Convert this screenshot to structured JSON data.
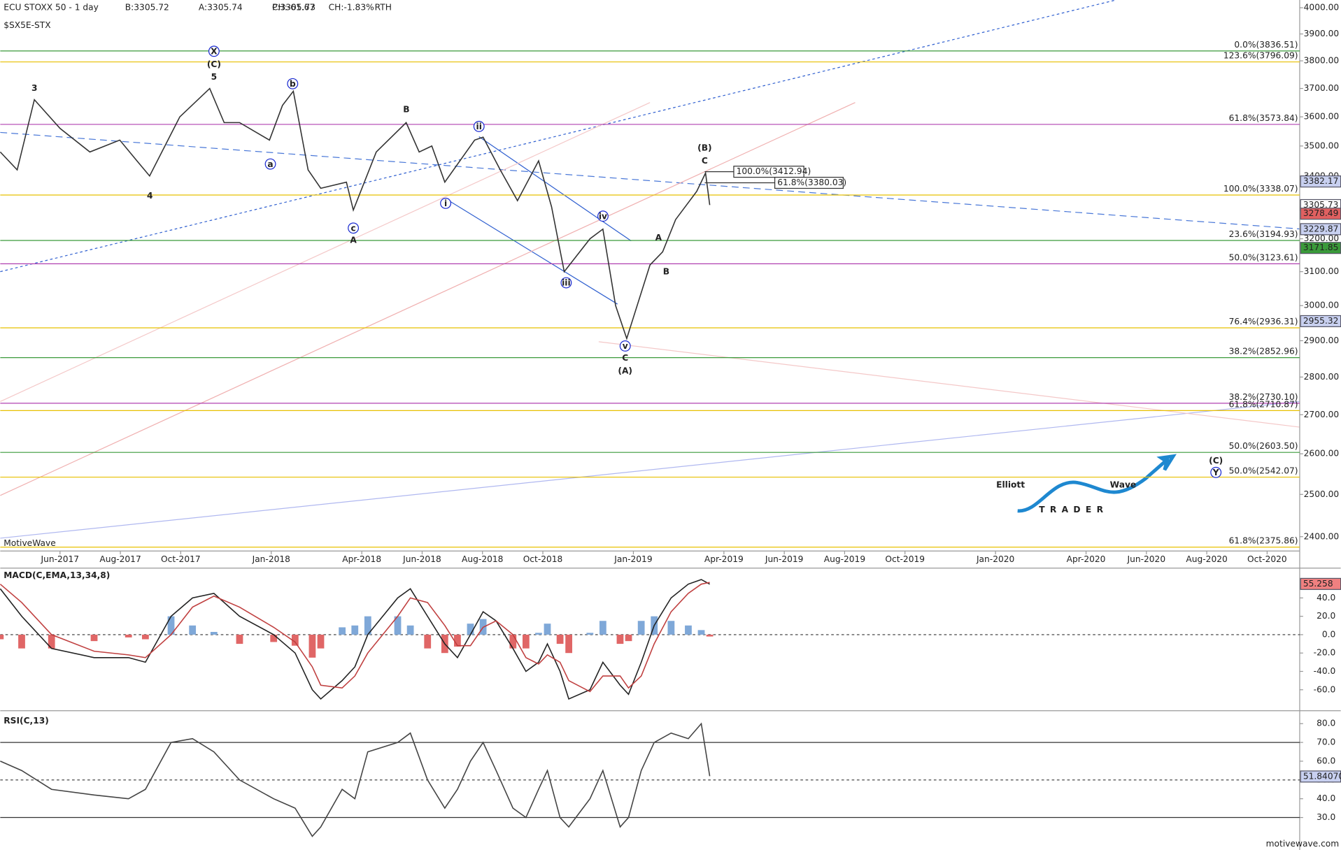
{
  "chart_data": [
    {
      "type": "line",
      "title": "ECU STOXX 50 - 1 day",
      "subtitle": "$SX5E-STX",
      "quote": [
        "B:3305.72",
        "A:3305.74",
        "P:3305.73"
      ],
      "change": [
        "CH:-61.67",
        "CH:-1.83%"
      ],
      "session": "RTH",
      "source": "MotiveWave",
      "footer": "motivewave.com",
      "logo": [
        "Elliott",
        "Wave",
        "TRADER"
      ],
      "log_scale": true,
      "xlim": [
        3.02,
        46.08
      ],
      "xticks": [
        {
          "value": 5,
          "label": "Jun-2017"
        },
        {
          "value": 7,
          "label": "Aug-2017"
        },
        {
          "value": 9,
          "label": "Oct-2017"
        },
        {
          "value": 12,
          "label": "Jan-2018"
        },
        {
          "value": 15,
          "label": "Apr-2018"
        },
        {
          "value": 17,
          "label": "Jun-2018"
        },
        {
          "value": 19,
          "label": "Aug-2018"
        },
        {
          "value": 21,
          "label": "Oct-2018"
        },
        {
          "value": 24,
          "label": "Jan-2019"
        },
        {
          "value": 27,
          "label": "Apr-2019"
        },
        {
          "value": 29,
          "label": "Jun-2019"
        },
        {
          "value": 31,
          "label": "Aug-2019"
        },
        {
          "value": 33,
          "label": "Oct-2019"
        },
        {
          "value": 36,
          "label": "Jan-2020"
        },
        {
          "value": 39,
          "label": "Apr-2020"
        },
        {
          "value": 41,
          "label": "Jun-2020"
        },
        {
          "value": 43,
          "label": "Aug-2020"
        },
        {
          "value": 45,
          "label": "Oct-2020"
        }
      ],
      "ylim": [
        2367,
        4030
      ],
      "yticks": [
        {
          "value": 2400,
          "label": "2400.00"
        },
        {
          "value": 2500,
          "label": "2500.00"
        },
        {
          "value": 2600,
          "label": "2600.00"
        },
        {
          "value": 2700,
          "label": "2700.00"
        },
        {
          "value": 2800,
          "label": "2800.00"
        },
        {
          "value": 2900,
          "label": "2900.00"
        },
        {
          "value": 3000,
          "label": "3000.00"
        },
        {
          "value": 3100,
          "label": "3100.00"
        },
        {
          "value": 3200,
          "label": "3200.00"
        },
        {
          "value": 3300,
          "label": "3300.00"
        },
        {
          "value": 3400,
          "label": "3400.00"
        },
        {
          "value": 3500,
          "label": "3500.00"
        },
        {
          "value": 3600,
          "label": "3600.00"
        },
        {
          "value": 3700,
          "label": "3700.00"
        },
        {
          "value": 3800,
          "label": "3800.00"
        },
        {
          "value": 3900,
          "label": "3900.00"
        },
        {
          "value": 4000,
          "label": "4000.00"
        }
      ],
      "series": [
        {
          "color": "#333333",
          "x": [
            3.02,
            3.58,
            4.15,
            5,
            5.99,
            6.98,
            7.55,
            7.97,
            8.97,
            9.96,
            10.44,
            10.95,
            11.94,
            12.37,
            12.73,
            13.22,
            13.64,
            14.49,
            14.72,
            15.48,
            16.47,
            16.9,
            17.32,
            17.75,
            18.74,
            19.02,
            19.59,
            20.16,
            20.86,
            21.29,
            21.71,
            22.56,
            22.99,
            23.41,
            23.78,
            24.55,
            24.97,
            25.4,
            26.1,
            26.39,
            26.53
          ],
          "values": [
            3480,
            3420,
            3660,
            3560,
            3480,
            3520,
            3450,
            3400,
            3600,
            3700,
            3580,
            3580,
            3520,
            3640,
            3690,
            3420,
            3360,
            3380,
            3290,
            3480,
            3580,
            3480,
            3500,
            3380,
            3520,
            3530,
            3420,
            3320,
            3450,
            3300,
            3100,
            3200,
            3230,
            3000,
            2906,
            3120,
            3160,
            3260,
            3350,
            3410,
            3306
          ]
        }
      ],
      "levels": [
        {
          "value": 3836.51,
          "label": "0.0%(3836.51)",
          "color": "#3a9a3a"
        },
        {
          "value": 3796.09,
          "label": "123.6%(3796.09)",
          "color": "#e8c000"
        },
        {
          "value": 3573.84,
          "label": "61.8%(3573.84)",
          "color": "#b040b0"
        },
        {
          "value": 3338.07,
          "label": "100.0%(3338.07)",
          "color": "#e8c000"
        },
        {
          "value": 3194.93,
          "label": "23.6%(3194.93)",
          "color": "#3a9a3a"
        },
        {
          "value": 3123.61,
          "label": "50.0%(3123.61)",
          "color": "#b040b0"
        },
        {
          "value": 2936.31,
          "label": "76.4%(2936.31)",
          "color": "#e8c000"
        },
        {
          "value": 2852.96,
          "label": "38.2%(2852.96)",
          "color": "#3a9a3a"
        },
        {
          "value": 2730.1,
          "label": "38.2%(2730.10)",
          "color": "#b040b0"
        },
        {
          "value": 2710.87,
          "label": "61.8%(2710.87)",
          "color": "#e8c000"
        },
        {
          "value": 2603.5,
          "label": "50.0%(2603.50)",
          "color": "#3a9a3a"
        },
        {
          "value": 2542.07,
          "label": "50.0%(2542.07)",
          "color": "#e8c000"
        },
        {
          "value": 2375.86,
          "label": "61.8%(2375.86)",
          "color": "#e8c000"
        }
      ],
      "markers": [
        {
          "value": 3382.17,
          "color": "#c8d0f0"
        },
        {
          "value": 3305.73,
          "color": "#ffffff"
        },
        {
          "value": 3278.49,
          "color": "#e06060"
        },
        {
          "value": 3229.87,
          "color": "#c8d0f0"
        },
        {
          "value": 3171.85,
          "color": "#3a9a3a"
        },
        {
          "value": 2955.32,
          "color": "#c8d0f0"
        }
      ],
      "projections": [
        "100.0%(3412.94)",
        "61.8%(3380.03)"
      ],
      "annotations": [
        "3",
        "4",
        "X",
        "(C)",
        "5",
        "a",
        "b",
        "c",
        "A",
        "B",
        "i",
        "ii",
        "iii",
        "iv",
        "v",
        "C",
        "(A)",
        "A",
        "B",
        "(B)",
        "C",
        "(C)",
        "Y"
      ]
    },
    {
      "type": "line",
      "title": "MACD(C,EMA,13,34,8)",
      "xlim": [
        3.02,
        46.08
      ],
      "ylim": [
        -81,
        72.5
      ],
      "yticks": [
        {
          "value": -60,
          "label": "-60.0"
        },
        {
          "value": -40,
          "label": "-40.0"
        },
        {
          "value": -20,
          "label": "-20.0"
        },
        {
          "value": 0,
          "label": "0.0"
        },
        {
          "value": 20,
          "label": "20.0"
        },
        {
          "value": 40,
          "label": "40.0"
        }
      ],
      "x": [
        3.02,
        3.73,
        4.72,
        6.13,
        7.27,
        7.83,
        8.68,
        9.39,
        10.1,
        10.95,
        12.08,
        12.79,
        13.36,
        13.64,
        14.35,
        14.77,
        15.2,
        16.19,
        16.61,
        17.18,
        17.75,
        18.17,
        18.6,
        19.02,
        19.45,
        20.01,
        20.44,
        20.86,
        21.15,
        21.57,
        21.86,
        22.56,
        22.99,
        23.56,
        23.84,
        24.26,
        24.69,
        25.25,
        25.82,
        26.25,
        26.53
      ],
      "series": [
        {
          "type": "line",
          "color": "#222222",
          "values": [
            50,
            20,
            -15,
            -25,
            -25,
            -30,
            20,
            40,
            45,
            20,
            0,
            -20,
            -60,
            -70,
            -50,
            -35,
            0,
            40,
            50,
            20,
            -10,
            -25,
            0,
            25,
            15,
            -15,
            -40,
            -30,
            -10,
            -40,
            -70,
            -60,
            -30,
            -55,
            -65,
            -30,
            10,
            40,
            55,
            60,
            55
          ]
        },
        {
          "type": "line",
          "color": "#c04040",
          "values": [
            55,
            35,
            0,
            -18,
            -22,
            -25,
            0,
            30,
            42,
            30,
            8,
            -8,
            -35,
            -55,
            -58,
            -45,
            -20,
            20,
            40,
            35,
            10,
            -12,
            -12,
            8,
            15,
            0,
            -25,
            -32,
            -22,
            -30,
            -50,
            -62,
            -45,
            -45,
            -58,
            -45,
            -10,
            25,
            45,
            55,
            57
          ]
        },
        {
          "type": "bar",
          "color": "#7fa8d8",
          "negative_color": "#e06666",
          "values": [
            -5,
            -15,
            -15,
            -7,
            -3,
            -5,
            20,
            10,
            3,
            -10,
            -8,
            -12,
            -25,
            -15,
            8,
            10,
            20,
            20,
            10,
            -15,
            -20,
            -13,
            12,
            17,
            0,
            -15,
            -15,
            2,
            12,
            -10,
            -20,
            2,
            15,
            -10,
            -7,
            15,
            20,
            15,
            10,
            5,
            -2
          ]
        }
      ],
      "markers": [
        {
          "value": 55.258,
          "color": "#f08080"
        }
      ]
    },
    {
      "type": "line",
      "title": "RSI(C,13)",
      "xlim": [
        3.02,
        46.08
      ],
      "ylim": [
        12.7,
        85.5
      ],
      "yticks": [
        {
          "value": 30,
          "label": "30.0"
        },
        {
          "value": 40,
          "label": "40.0"
        },
        {
          "value": 50,
          "label": "50.0"
        },
        {
          "value": 60,
          "label": "60.0"
        },
        {
          "value": 70,
          "label": "70.0"
        },
        {
          "value": 80,
          "label": "80.0"
        }
      ],
      "levels": [
        {
          "value": 70,
          "style": "solid"
        },
        {
          "value": 50,
          "style": "dashed"
        },
        {
          "value": 30,
          "style": "solid"
        }
      ],
      "x": [
        3.02,
        3.73,
        4.72,
        6.13,
        7.27,
        7.83,
        8.68,
        9.39,
        10.1,
        10.95,
        12.08,
        12.79,
        13.36,
        13.64,
        14.35,
        14.77,
        15.2,
        16.19,
        16.61,
        17.18,
        17.75,
        18.17,
        18.6,
        19.02,
        19.45,
        20.01,
        20.44,
        20.86,
        21.15,
        21.57,
        21.86,
        22.56,
        22.99,
        23.56,
        23.84,
        24.26,
        24.69,
        25.25,
        25.82,
        26.25,
        26.53
      ],
      "series": [
        {
          "type": "line",
          "color": "#444444",
          "values": [
            60,
            55,
            45,
            42,
            40,
            45,
            70,
            72,
            65,
            50,
            40,
            35,
            20,
            25,
            45,
            40,
            65,
            70,
            75,
            50,
            35,
            45,
            60,
            70,
            55,
            35,
            30,
            45,
            55,
            30,
            25,
            40,
            55,
            25,
            30,
            55,
            70,
            75,
            72,
            80,
            52
          ]
        }
      ],
      "markers": [
        {
          "value": 51.8407,
          "label": "51.84070",
          "color": "#c8d0f0"
        }
      ]
    }
  ]
}
